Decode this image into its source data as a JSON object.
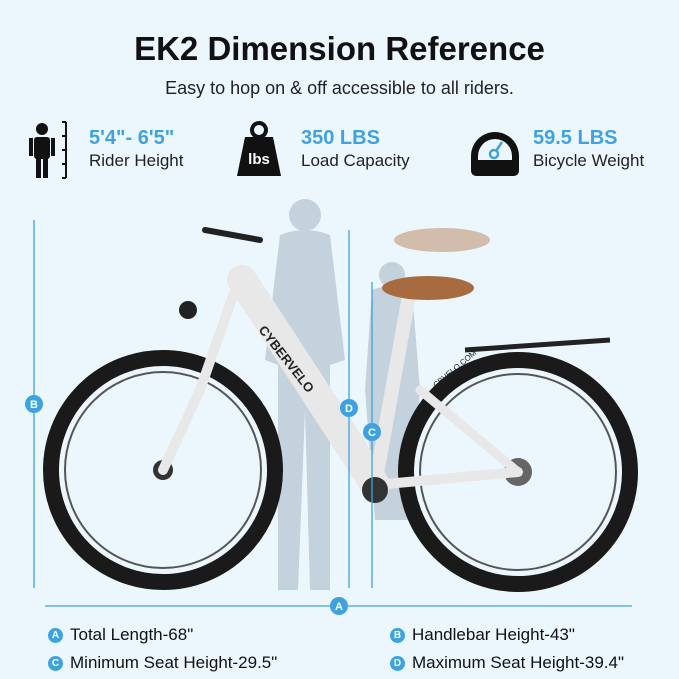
{
  "header": {
    "title": "EK2 Dimension Reference",
    "subtitle": "Easy to hop on & off accessible to all riders."
  },
  "stats": [
    {
      "icon": "person-height-icon",
      "value": "5'4\"- 6'5\"",
      "label": "Rider Height"
    },
    {
      "icon": "weight-lbs-icon",
      "value": "350 LBS",
      "label": "Load Capacity",
      "icon_text": "lbs"
    },
    {
      "icon": "scale-gauge-icon",
      "value": "59.5 LBS",
      "label": "Bicycle Weight"
    }
  ],
  "dimensions": [
    {
      "key": "A",
      "label": "Total Length-68\""
    },
    {
      "key": "B",
      "label": "Handlebar Height-43\""
    },
    {
      "key": "C",
      "label": "Minimum Seat Height-29.5\""
    },
    {
      "key": "D",
      "label": "Maximum Seat Height-39.4\""
    }
  ],
  "bike_branding": {
    "frame": "CYBERVELO",
    "rear": "CBVELO.COM"
  },
  "colors": {
    "accent": "#3fa2e0",
    "background": "#ecf7fd",
    "frame": "#f2f2f2",
    "saddle": "#a86b3f"
  }
}
